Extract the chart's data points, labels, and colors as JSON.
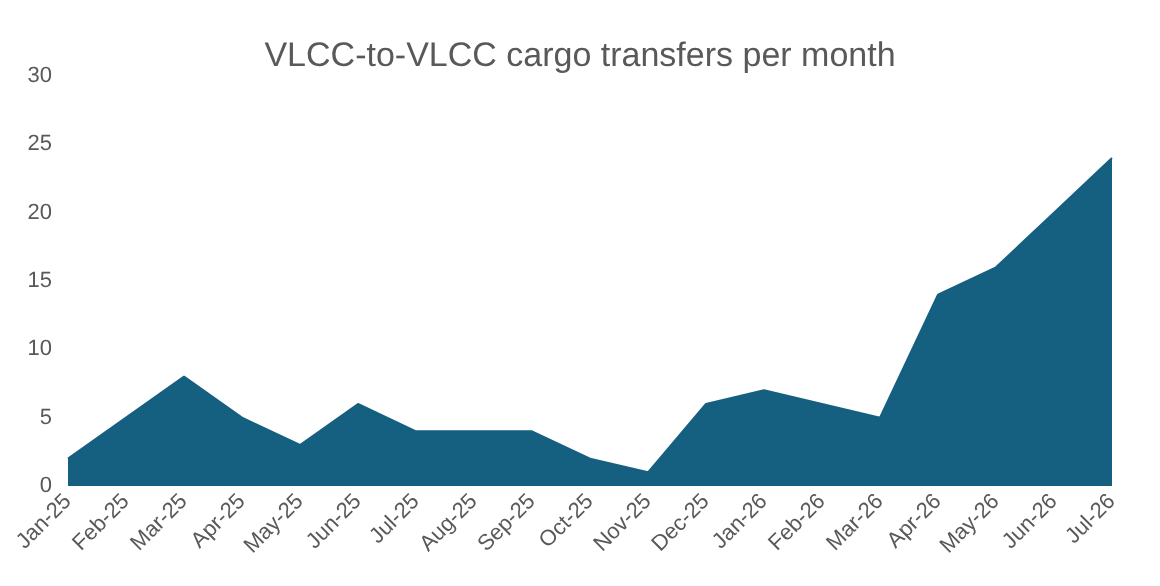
{
  "chart_data": {
    "type": "area",
    "title": "VLCC-to-VLCC cargo transfers per month",
    "categories": [
      "Jan-25",
      "Feb-25",
      "Mar-25",
      "Apr-25",
      "May-25",
      "Jun-25",
      "Jul-25",
      "Aug-25",
      "Sep-25",
      "Oct-25",
      "Nov-25",
      "Dec-25",
      "Jan-26",
      "Feb-26",
      "Mar-26",
      "Apr-26",
      "May-26",
      "Jun-26",
      "Jul-26"
    ],
    "series": [
      {
        "color": "#155f80",
        "values": [
          2,
          5,
          8,
          5,
          3,
          6,
          4,
          4,
          4,
          2,
          1,
          6,
          7,
          6,
          5,
          14,
          16,
          20,
          24
        ]
      }
    ],
    "ylim": [
      0,
      30
    ],
    "yticks": [
      0,
      5,
      10,
      15,
      20,
      25,
      30
    ],
    "grid": false
  }
}
